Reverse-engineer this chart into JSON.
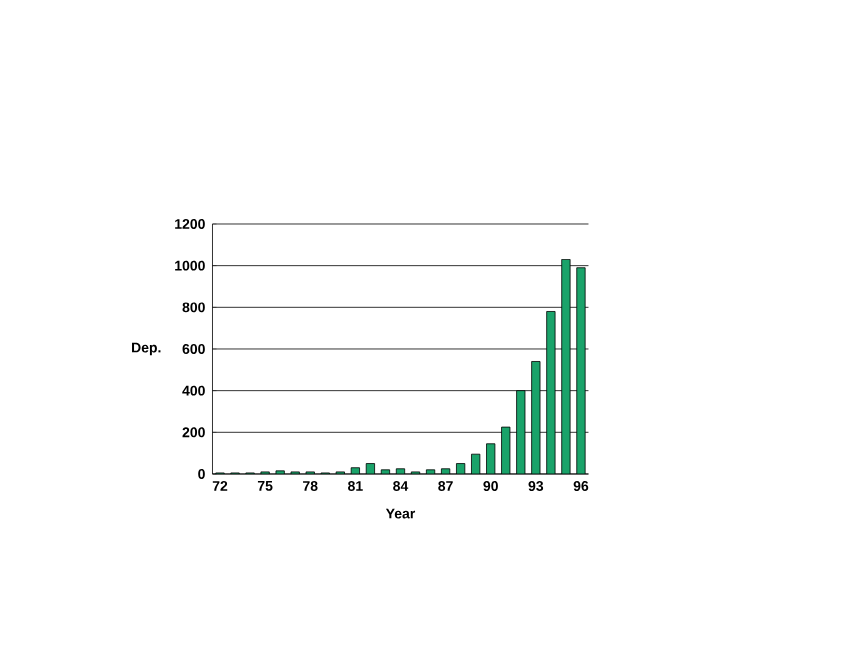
{
  "chart_data": {
    "type": "bar",
    "xlabel": "Year",
    "ylabel": "Dep.",
    "categories": [
      "72",
      null,
      null,
      "75",
      null,
      null,
      "78",
      null,
      null,
      "81",
      null,
      null,
      "84",
      null,
      null,
      "87",
      null,
      null,
      "90",
      null,
      null,
      "93",
      null,
      null,
      "96"
    ],
    "values": [
      5,
      5,
      5,
      10,
      15,
      10,
      10,
      5,
      10,
      30,
      50,
      20,
      25,
      10,
      20,
      25,
      50,
      95,
      145,
      225,
      400,
      540,
      780,
      1030,
      990
    ],
    "color": "#1aa36a",
    "ylim": [
      0,
      1200
    ],
    "yticks": [
      0,
      200,
      400,
      600,
      800,
      1000,
      1200
    ],
    "grid": "y"
  }
}
